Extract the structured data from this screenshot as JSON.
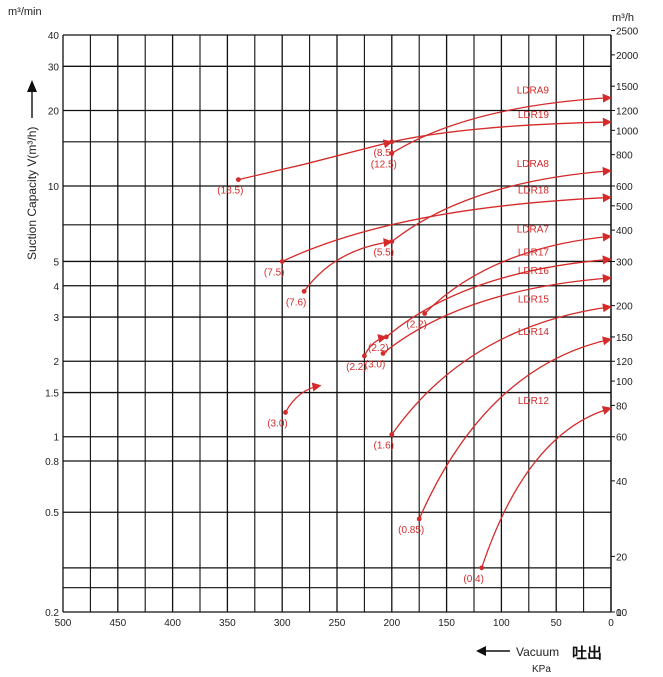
{
  "chart_data": {
    "type": "line",
    "left_unit": "m³/min",
    "right_unit": "m³/h",
    "ylabel": "Suction Capacity V(m³/h)",
    "xlabel": "Vacuum",
    "xlabel_cn": "吐出",
    "x_unit": "KPa",
    "x_ticks": [
      500,
      450,
      400,
      350,
      300,
      250,
      200,
      150,
      100,
      50,
      0
    ],
    "xlim": [
      500,
      0
    ],
    "left_ticks": [
      "40",
      "30",
      "20",
      "10",
      "5",
      "4",
      "3",
      "2",
      "1.5",
      "1",
      "0.8",
      "0.5",
      "0.2"
    ],
    "right_ticks": [
      "2500",
      "2000",
      "1500",
      "1200",
      "1000",
      "800",
      "600",
      "500",
      "400",
      "300",
      "200",
      "150",
      "120",
      "100",
      "80",
      "60",
      "40",
      "20",
      "10",
      "0"
    ],
    "grid": true,
    "series": [
      {
        "name": "LDRA9",
        "annotation": "(12.5)",
        "x": [
          200,
          0
        ],
        "y": [
          13.5,
          22.5
        ]
      },
      {
        "name": "LDR19",
        "annotation": "(8.5)",
        "x": [
          200,
          0
        ],
        "y": [
          15.0,
          18.0
        ]
      },
      {
        "name": "",
        "annotation": "(18.5)",
        "x": [
          340,
          280,
          200
        ],
        "y": [
          10.6,
          12.2,
          15.0
        ]
      },
      {
        "name": "LDRA8",
        "annotation": "(5.5)",
        "x": [
          200,
          0
        ],
        "y": [
          6.0,
          11.5
        ]
      },
      {
        "name": "LDR18",
        "annotation": "(7.5)",
        "x": [
          300,
          0
        ],
        "y": [
          5.0,
          9.0
        ]
      },
      {
        "name": "",
        "annotation": "(7.6)",
        "x": [
          280,
          200
        ],
        "y": [
          3.8,
          6.0
        ]
      },
      {
        "name": "LDRA7",
        "annotation": "(2.2)",
        "x": [
          170,
          0
        ],
        "y": [
          3.1,
          6.3
        ]
      },
      {
        "name": "LDR17",
        "annotation": "(2.2)",
        "x": [
          205,
          0
        ],
        "y": [
          2.5,
          5.1
        ]
      },
      {
        "name": "LDR16",
        "annotation": "(3.0)",
        "x": [
          208,
          0
        ],
        "y": [
          2.15,
          4.3
        ]
      },
      {
        "name": "",
        "annotation": "(2.2)",
        "x": [
          225,
          205
        ],
        "y": [
          2.1,
          2.5
        ]
      },
      {
        "name": "",
        "annotation": "(3.0)",
        "x": [
          297,
          265
        ],
        "y": [
          1.25,
          1.6
        ]
      },
      {
        "name": "LDR15",
        "annotation": "(1.6)",
        "x": [
          200,
          0
        ],
        "y": [
          1.02,
          3.3
        ]
      },
      {
        "name": "LDR14",
        "annotation": "(0.85)",
        "x": [
          175,
          0
        ],
        "y": [
          0.47,
          2.45
        ]
      },
      {
        "name": "LDR12",
        "annotation": "(0.4)",
        "x": [
          118,
          0
        ],
        "y": [
          0.3,
          1.3
        ]
      }
    ]
  }
}
